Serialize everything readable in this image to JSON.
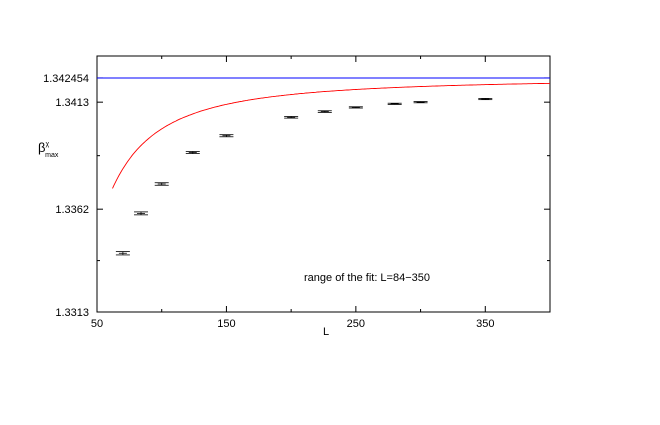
{
  "chart_data": {
    "type": "scatter",
    "xlabel": "L",
    "ylabel": {
      "base": "β",
      "sup": "χ",
      "sub": "max"
    },
    "xlim": [
      50,
      400
    ],
    "ylim": [
      1.3313,
      1.3435
    ],
    "x_ticks": [
      50,
      150,
      250,
      350
    ],
    "x_tick_labels": [
      "50",
      "150",
      "250",
      "350"
    ],
    "y_ticks": [
      1.3313,
      1.3362,
      1.3413,
      1.342454
    ],
    "y_tick_labels": [
      "1.3313",
      "1.3362",
      "1.3413",
      "1.342454"
    ],
    "grid": false,
    "annotation": "range of the fit: L=84−350",
    "series": [
      {
        "kind": "points_with_errorbars",
        "color": "#000000",
        "x": [
          70,
          84,
          100,
          124,
          150,
          200,
          226,
          250,
          280,
          300,
          350
        ],
        "y": [
          1.3341,
          1.336,
          1.3374,
          1.3389,
          1.3397,
          1.34058,
          1.34085,
          1.34105,
          1.34122,
          1.3413,
          1.34145
        ],
        "err": [
          8e-05,
          7e-05,
          6e-05,
          5e-05,
          5e-05,
          4e-05,
          4e-05,
          3e-05,
          3e-05,
          3e-05,
          3e-05
        ]
      },
      {
        "kind": "fit_curve",
        "color": "#ff0000",
        "formula": "y = yinf - a * L^(-p)",
        "yinf": 1.342454,
        "a": 4.218,
        "p": 1.62,
        "x_start": 62,
        "x_end": 400
      },
      {
        "kind": "hline",
        "color": "#0000ff",
        "y": 1.342454
      }
    ]
  }
}
